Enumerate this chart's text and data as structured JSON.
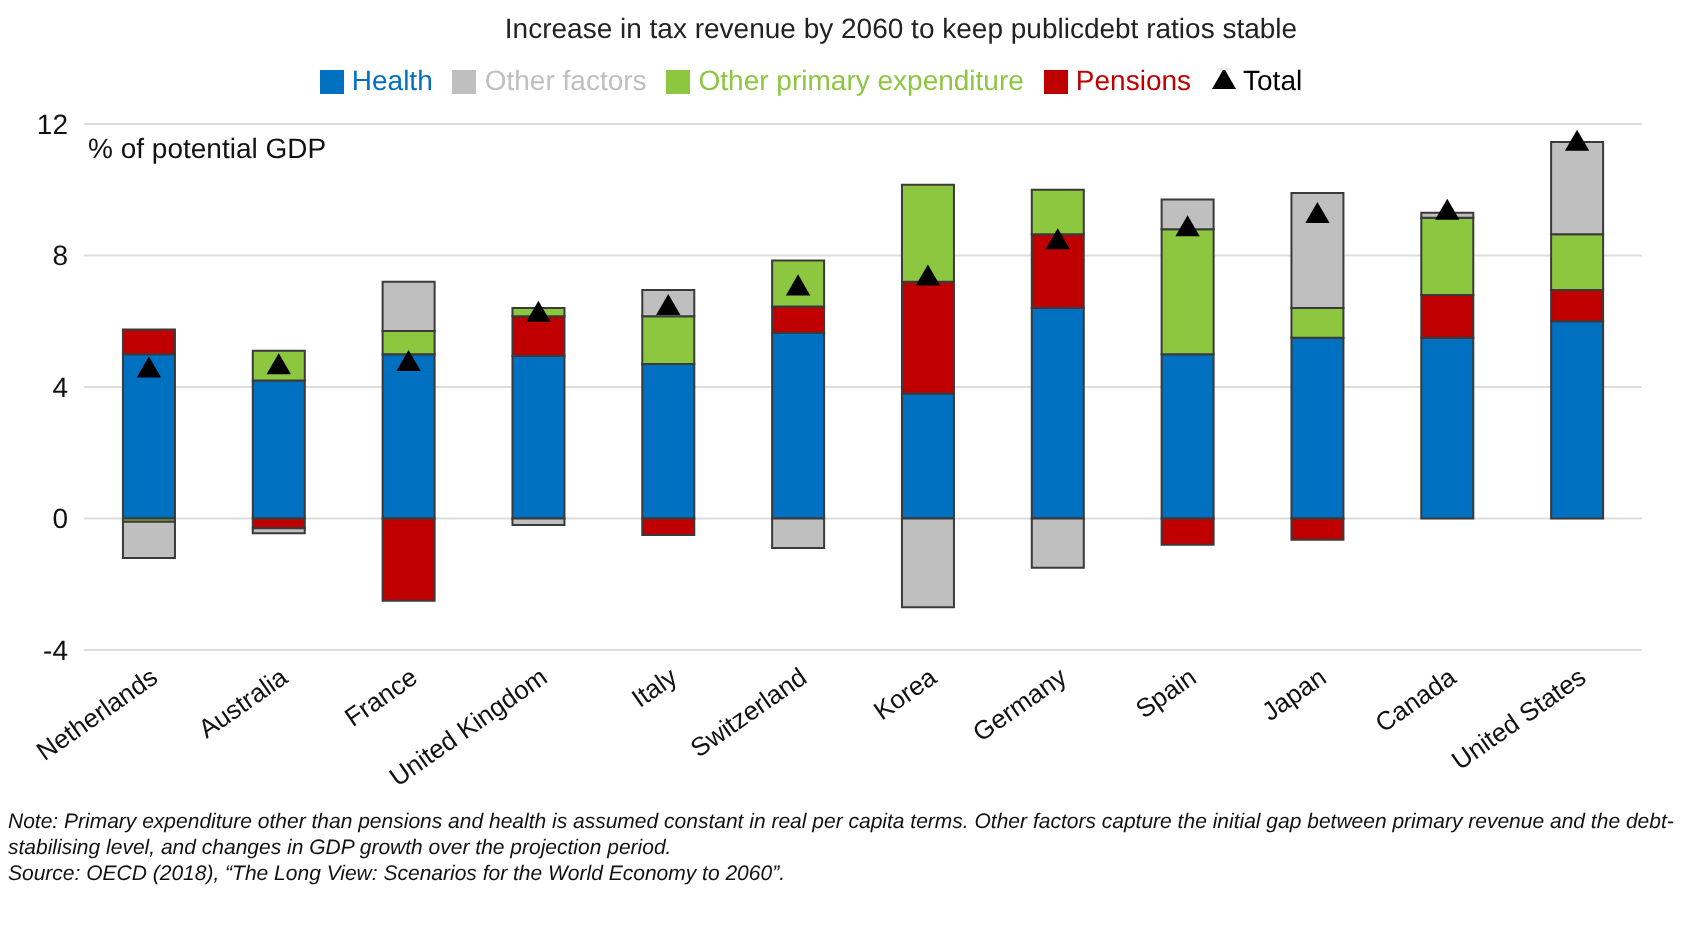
{
  "chart_data": {
    "type": "bar",
    "title": "Increase in tax revenue by 2060 to keep publicdebt ratios stable",
    "ylabel": "% of potential GDP",
    "stacked": true,
    "categories": [
      "Netherlands",
      "Australia",
      "France",
      "United Kingdom",
      "Italy",
      "Switzerland",
      "Korea",
      "Germany",
      "Spain",
      "Japan",
      "Canada",
      "United States"
    ],
    "series": [
      {
        "name": "Health",
        "color": "#0070c0",
        "values": [
          5.0,
          4.2,
          5.0,
          4.95,
          4.7,
          5.65,
          3.8,
          6.4,
          5.0,
          5.5,
          5.5,
          6.0
        ]
      },
      {
        "name": "Pensions",
        "color": "#c00000",
        "values": [
          0.75,
          -0.3,
          -2.5,
          1.2,
          -0.5,
          0.8,
          3.4,
          2.25,
          -0.8,
          -0.65,
          1.3,
          0.95
        ]
      },
      {
        "name": "Other primary expenditure",
        "color": "#8dc63f",
        "values": [
          -0.1,
          0.9,
          0.7,
          0.25,
          1.45,
          1.4,
          2.95,
          1.35,
          3.8,
          0.9,
          2.35,
          1.7
        ]
      },
      {
        "name": "Other factors",
        "color": "#bfbfbf",
        "values": [
          -1.1,
          -0.15,
          1.5,
          -0.2,
          0.8,
          -0.9,
          -2.7,
          -1.5,
          0.9,
          3.5,
          0.15,
          2.8
        ]
      },
      {
        "name": "Total",
        "type": "scatter",
        "marker": "triangle",
        "color": "#000000",
        "values": [
          4.5,
          4.6,
          4.7,
          6.2,
          6.4,
          7.0,
          7.3,
          8.4,
          8.8,
          9.2,
          9.3,
          11.4
        ]
      }
    ],
    "ylim": [
      -4,
      12
    ],
    "yticks": [
      -4,
      0,
      4,
      8,
      12
    ],
    "grid": "y",
    "legend": "top",
    "annotations": [
      "Note: Primary expenditure other than pensions and health is assumed constant in real per capita terms. Other factors capture the initial gap between primary revenue and the debt-stabilising level, and changes in GDP growth over the projection period.",
      "Source: OECD (2018), “The Long View: Scenarios for the World Economy to 2060”."
    ]
  }
}
